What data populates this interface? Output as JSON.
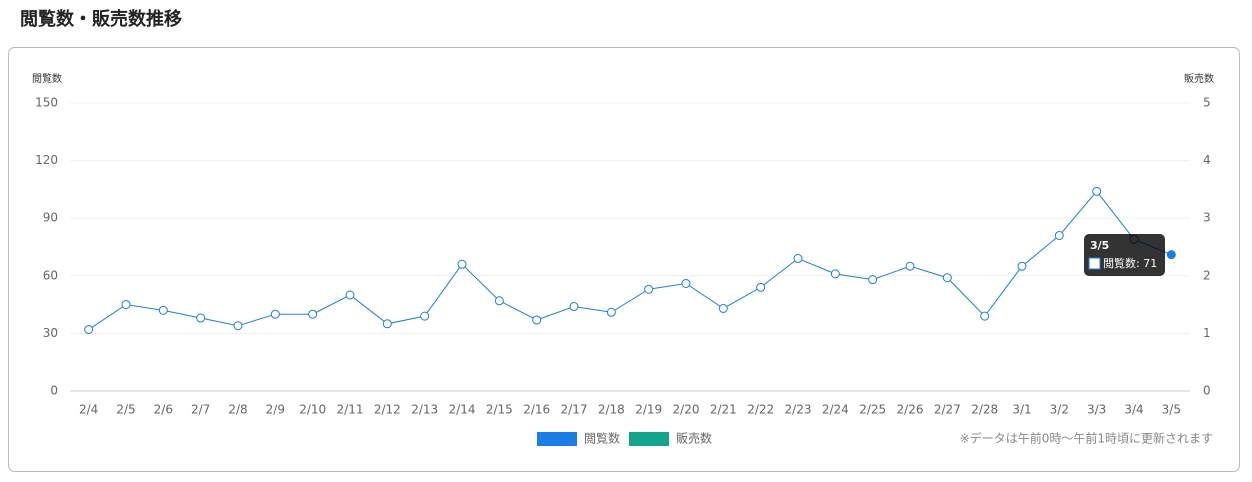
{
  "page_title": "閲覧数・販売数推移",
  "note": "※データは午前0時〜午前1時頃に更新されます",
  "chart_data": {
    "type": "line",
    "y_label": "閲覧数",
    "y2_label": "販売数",
    "categories": [
      "2/4",
      "2/5",
      "2/6",
      "2/7",
      "2/8",
      "2/9",
      "2/10",
      "2/11",
      "2/12",
      "2/13",
      "2/14",
      "2/15",
      "2/16",
      "2/17",
      "2/18",
      "2/19",
      "2/20",
      "2/21",
      "2/22",
      "2/23",
      "2/24",
      "2/25",
      "2/26",
      "2/27",
      "2/28",
      "3/1",
      "3/2",
      "3/3",
      "3/4",
      "3/5"
    ],
    "series": [
      {
        "name": "閲覧数",
        "color": "#1a7ee6",
        "values": [
          32,
          45,
          42,
          38,
          34,
          40,
          40,
          50,
          35,
          39,
          66,
          47,
          37,
          44,
          41,
          53,
          56,
          43,
          54,
          69,
          61,
          58,
          65,
          59,
          39,
          65,
          81,
          104,
          79,
          71
        ]
      },
      {
        "name": "販売数",
        "color": "#14a38b",
        "axis": "y2",
        "values": [
          null,
          null,
          null,
          null,
          null,
          null,
          null,
          null,
          null,
          null,
          null,
          null,
          null,
          null,
          null,
          null,
          null,
          null,
          null,
          null,
          null,
          null,
          null,
          null,
          null,
          null,
          null,
          null,
          null,
          null
        ]
      }
    ],
    "ylim": [
      0,
      150
    ],
    "yticks": [
      0,
      30,
      60,
      90,
      120,
      150
    ],
    "y2lim": [
      0,
      5
    ],
    "y2ticks": [
      0,
      1,
      2,
      3,
      4,
      5
    ],
    "grid": true,
    "legend": "bottom",
    "tooltip": {
      "title": "3/5",
      "label": "閲覧数: 71"
    }
  }
}
